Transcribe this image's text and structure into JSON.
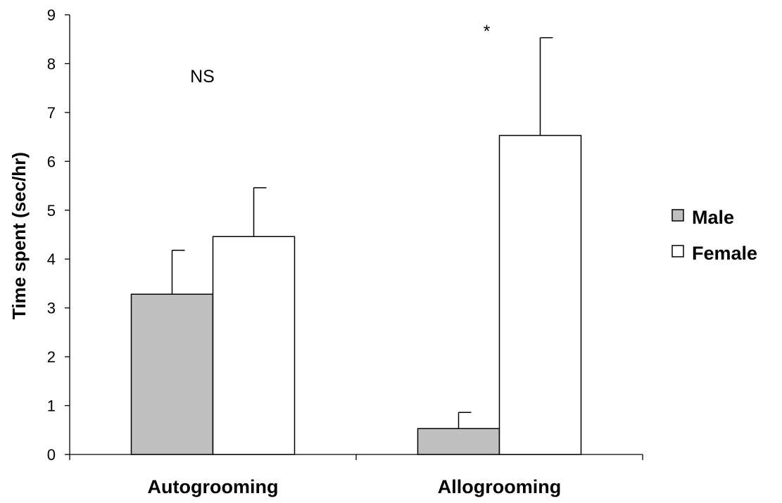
{
  "chart_data": {
    "type": "bar",
    "title": "",
    "xlabel": "",
    "ylabel": "Time spent (sec/hr)",
    "ylim": [
      0,
      9
    ],
    "yticks": [
      0,
      1,
      2,
      3,
      4,
      5,
      6,
      7,
      8,
      9
    ],
    "categories": [
      "Autogrooming",
      "Allogrooming"
    ],
    "series": [
      {
        "name": "Male",
        "color": "#c0c0c0",
        "values": [
          3.28,
          0.53
        ],
        "errors": [
          0.9,
          0.33
        ]
      },
      {
        "name": "Female",
        "color": "#ffffff",
        "values": [
          4.46,
          6.53
        ],
        "errors": [
          1.0,
          2.0
        ]
      }
    ],
    "annotations": [
      {
        "category": "Autogrooming",
        "text": "NS"
      },
      {
        "category": "Allogrooming",
        "text": "*"
      }
    ],
    "grid": false,
    "legend_position": "right"
  }
}
